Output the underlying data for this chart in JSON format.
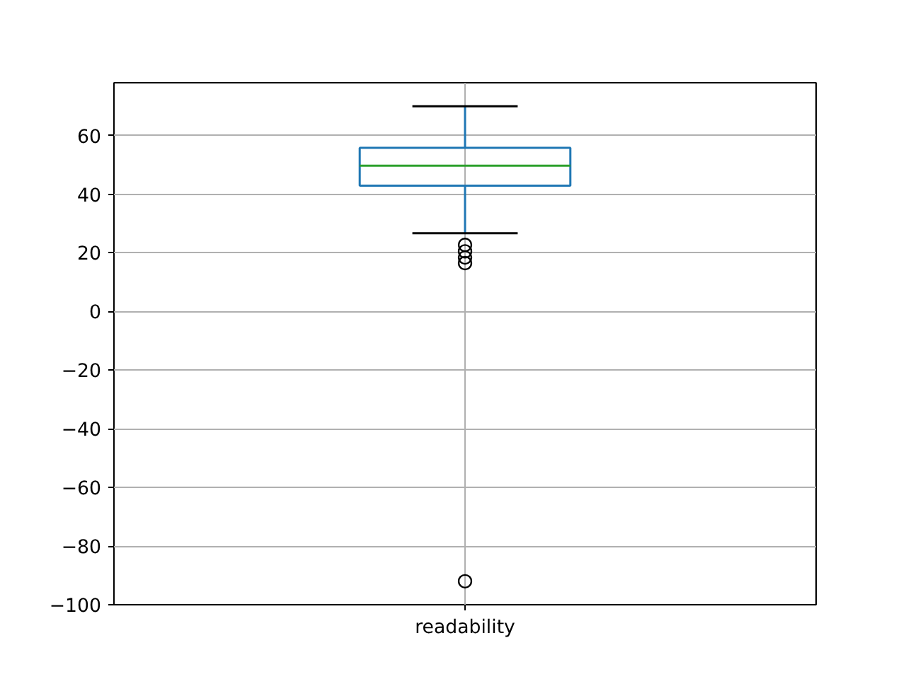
{
  "chart_data": {
    "type": "box",
    "categories": [
      "readability"
    ],
    "boxes": [
      {
        "low": 26.7,
        "q1": 42.9,
        "median": 49.7,
        "q3": 55.8,
        "high": 70,
        "outliers": [
          22.7,
          20.5,
          18.4,
          16.5,
          -92
        ]
      }
    ],
    "ylim": [
      -100,
      78
    ],
    "yticks": [
      -100,
      -80,
      -60,
      -40,
      -20,
      0,
      20,
      40,
      60
    ],
    "grid": true,
    "color": "#1f77b4"
  }
}
